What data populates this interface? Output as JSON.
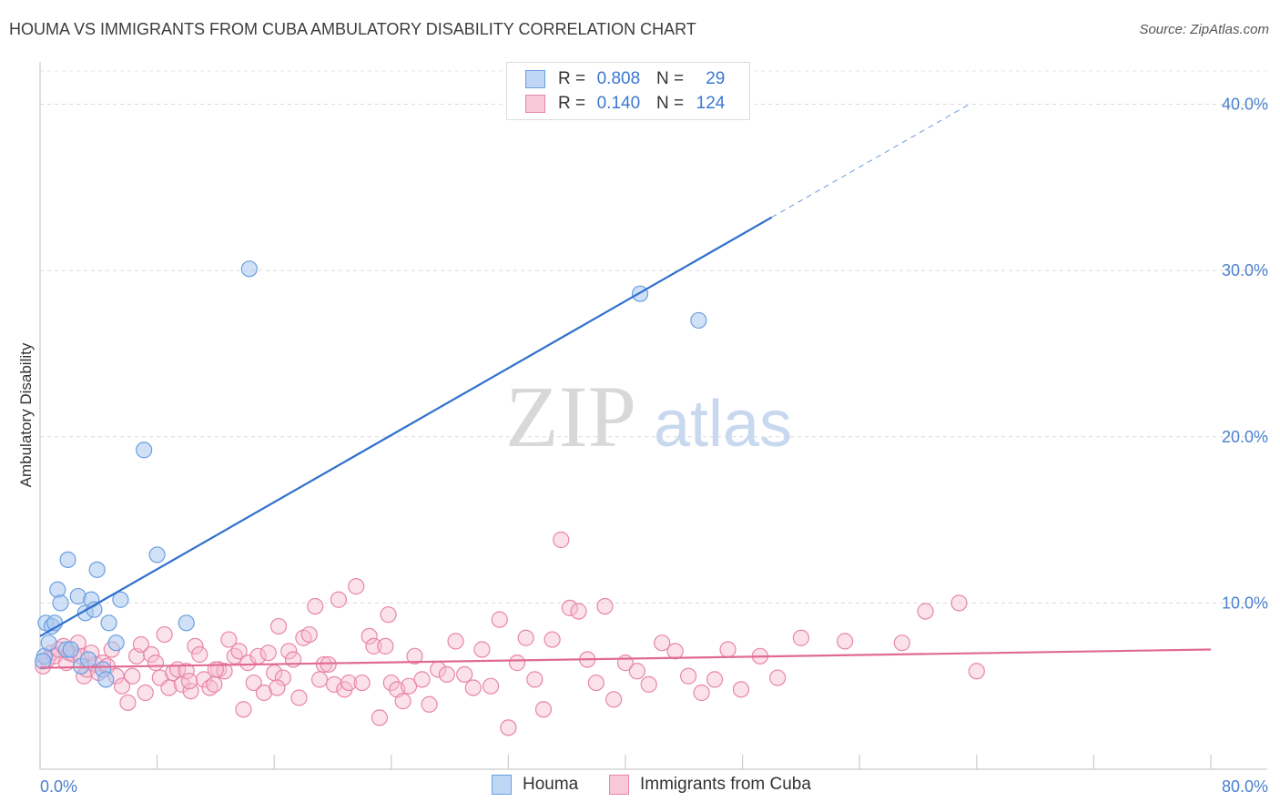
{
  "header": {
    "title": "HOUMA VS IMMIGRANTS FROM CUBA AMBULATORY DISABILITY CORRELATION CHART",
    "source": "Source: ZipAtlas.com"
  },
  "legend_top": {
    "row1": {
      "r_label": "R =",
      "r_value": "0.808",
      "n_label": "N =",
      "n_value": "29"
    },
    "row2": {
      "r_label": "R =",
      "r_value": "0.140",
      "n_label": "N =",
      "n_value": "124"
    }
  },
  "watermark": {
    "zip": "ZIP",
    "atlas": "atlas"
  },
  "colors": {
    "houma_fill": "#aac8f0",
    "houma_stroke": "#6a9fe0",
    "houma_line": "#2f6fce",
    "cuba_fill": "#f6bcd0",
    "cuba_stroke": "#e886a8",
    "cuba_line": "#e06a93",
    "tick_label": "#4a7fd0"
  },
  "chart_data": {
    "type": "scatter",
    "title": "HOUMA VS IMMIGRANTS FROM CUBA AMBULATORY DISABILITY CORRELATION CHART",
    "xlabel": "",
    "ylabel": "Ambulatory Disability",
    "xlim": [
      0,
      80
    ],
    "ylim": [
      0,
      42
    ],
    "x_tick_labels": [
      "0.0%",
      "80.0%"
    ],
    "y_ticks": [
      10,
      20,
      30,
      40
    ],
    "y_tick_labels": [
      "10.0%",
      "20.0%",
      "30.0%",
      "40.0%"
    ],
    "grid": "horizontal dashed",
    "legend_position": "bottom",
    "series": [
      {
        "name": "Houma",
        "r": 0.808,
        "n": 29,
        "trend": {
          "x0": 0,
          "y0": 8.0,
          "x1": 50,
          "y1": 33.2,
          "dashed_to_x": 63.5,
          "dashed_to_y": 40.0
        },
        "points": [
          [
            0.3,
            6.8
          ],
          [
            0.4,
            8.8
          ],
          [
            0.6,
            7.6
          ],
          [
            0.8,
            8.6
          ],
          [
            1.0,
            8.8
          ],
          [
            1.2,
            10.8
          ],
          [
            1.4,
            10.0
          ],
          [
            1.8,
            7.2
          ],
          [
            1.9,
            12.6
          ],
          [
            2.1,
            7.2
          ],
          [
            2.6,
            10.4
          ],
          [
            2.8,
            6.2
          ],
          [
            3.1,
            9.4
          ],
          [
            3.3,
            6.6
          ],
          [
            3.5,
            10.2
          ],
          [
            3.7,
            9.6
          ],
          [
            3.9,
            12.0
          ],
          [
            4.3,
            6.0
          ],
          [
            4.5,
            5.4
          ],
          [
            4.7,
            8.8
          ],
          [
            5.2,
            7.6
          ],
          [
            5.5,
            10.2
          ],
          [
            7.1,
            19.2
          ],
          [
            8.0,
            12.9
          ],
          [
            10.0,
            8.8
          ],
          [
            14.3,
            30.1
          ],
          [
            41.0,
            28.6
          ],
          [
            45.0,
            27.0
          ],
          [
            0.2,
            6.5
          ]
        ]
      },
      {
        "name": "Immigrants from Cuba",
        "r": 0.14,
        "n": 124,
        "trend": {
          "x0": 0,
          "y0": 6.1,
          "x1": 80,
          "y1": 7.2
        },
        "points": [
          [
            0.2,
            6.2
          ],
          [
            0.5,
            6.6
          ],
          [
            0.8,
            7.0
          ],
          [
            1.0,
            6.8
          ],
          [
            1.3,
            7.2
          ],
          [
            1.6,
            7.4
          ],
          [
            1.8,
            6.4
          ],
          [
            2.0,
            7.0
          ],
          [
            2.3,
            6.9
          ],
          [
            2.6,
            7.6
          ],
          [
            2.8,
            6.8
          ],
          [
            3.0,
            5.6
          ],
          [
            3.2,
            6.0
          ],
          [
            3.5,
            7.0
          ],
          [
            3.8,
            6.3
          ],
          [
            4.0,
            5.8
          ],
          [
            4.3,
            6.4
          ],
          [
            4.6,
            6.2
          ],
          [
            4.9,
            7.2
          ],
          [
            5.2,
            5.6
          ],
          [
            5.6,
            5.0
          ],
          [
            6.0,
            4.0
          ],
          [
            6.3,
            5.6
          ],
          [
            6.6,
            6.8
          ],
          [
            6.9,
            7.5
          ],
          [
            7.2,
            4.6
          ],
          [
            7.6,
            6.9
          ],
          [
            7.9,
            6.4
          ],
          [
            8.2,
            5.5
          ],
          [
            8.5,
            8.1
          ],
          [
            8.8,
            4.9
          ],
          [
            9.1,
            5.8
          ],
          [
            9.4,
            6.0
          ],
          [
            9.7,
            5.1
          ],
          [
            10.0,
            5.9
          ],
          [
            10.3,
            4.7
          ],
          [
            10.6,
            7.4
          ],
          [
            10.9,
            6.9
          ],
          [
            11.2,
            5.4
          ],
          [
            11.6,
            4.9
          ],
          [
            11.9,
            5.1
          ],
          [
            12.2,
            6.0
          ],
          [
            12.6,
            5.9
          ],
          [
            12.9,
            7.8
          ],
          [
            13.3,
            6.8
          ],
          [
            13.6,
            7.1
          ],
          [
            13.9,
            3.6
          ],
          [
            14.2,
            6.4
          ],
          [
            14.6,
            5.2
          ],
          [
            14.9,
            6.8
          ],
          [
            15.3,
            4.6
          ],
          [
            15.6,
            7.0
          ],
          [
            16.0,
            5.8
          ],
          [
            16.3,
            8.6
          ],
          [
            16.6,
            5.5
          ],
          [
            17.0,
            7.1
          ],
          [
            17.3,
            6.6
          ],
          [
            17.7,
            4.3
          ],
          [
            18.0,
            7.9
          ],
          [
            18.4,
            8.1
          ],
          [
            18.8,
            9.8
          ],
          [
            19.1,
            5.4
          ],
          [
            19.4,
            6.3
          ],
          [
            19.7,
            6.3
          ],
          [
            20.1,
            5.1
          ],
          [
            20.4,
            10.2
          ],
          [
            20.8,
            4.8
          ],
          [
            21.1,
            5.2
          ],
          [
            21.6,
            11.0
          ],
          [
            22.0,
            5.2
          ],
          [
            22.5,
            8.0
          ],
          [
            22.8,
            7.4
          ],
          [
            23.2,
            3.1
          ],
          [
            23.6,
            7.4
          ],
          [
            24.0,
            5.2
          ],
          [
            24.4,
            4.8
          ],
          [
            24.8,
            4.1
          ],
          [
            25.2,
            5.0
          ],
          [
            25.6,
            6.8
          ],
          [
            26.1,
            5.4
          ],
          [
            26.6,
            3.9
          ],
          [
            27.2,
            6.0
          ],
          [
            27.8,
            5.7
          ],
          [
            28.4,
            7.7
          ],
          [
            29.0,
            5.7
          ],
          [
            29.6,
            4.9
          ],
          [
            30.2,
            7.2
          ],
          [
            30.8,
            5.0
          ],
          [
            31.4,
            9.0
          ],
          [
            32.0,
            2.5
          ],
          [
            32.6,
            6.4
          ],
          [
            33.2,
            7.9
          ],
          [
            33.8,
            5.4
          ],
          [
            34.4,
            3.6
          ],
          [
            35.0,
            7.8
          ],
          [
            35.6,
            13.8
          ],
          [
            36.2,
            9.7
          ],
          [
            36.8,
            9.5
          ],
          [
            37.4,
            6.6
          ],
          [
            38.0,
            5.2
          ],
          [
            38.6,
            9.8
          ],
          [
            39.2,
            4.2
          ],
          [
            40.0,
            6.4
          ],
          [
            40.8,
            5.9
          ],
          [
            41.6,
            5.1
          ],
          [
            42.5,
            7.6
          ],
          [
            43.4,
            7.1
          ],
          [
            44.3,
            5.6
          ],
          [
            45.2,
            4.6
          ],
          [
            46.1,
            5.4
          ],
          [
            47.0,
            7.2
          ],
          [
            47.9,
            4.8
          ],
          [
            49.2,
            6.8
          ],
          [
            50.4,
            5.5
          ],
          [
            52.0,
            7.9
          ],
          [
            55.0,
            7.7
          ],
          [
            58.9,
            7.6
          ],
          [
            60.5,
            9.5
          ],
          [
            62.8,
            10.0
          ],
          [
            64.0,
            5.9
          ],
          [
            10.2,
            5.3
          ],
          [
            16.2,
            4.9
          ],
          [
            23.8,
            9.3
          ],
          [
            12.0,
            6.0
          ]
        ]
      }
    ]
  },
  "bottom_legend": {
    "item1": "Houma",
    "item2": "Immigrants from Cuba"
  }
}
